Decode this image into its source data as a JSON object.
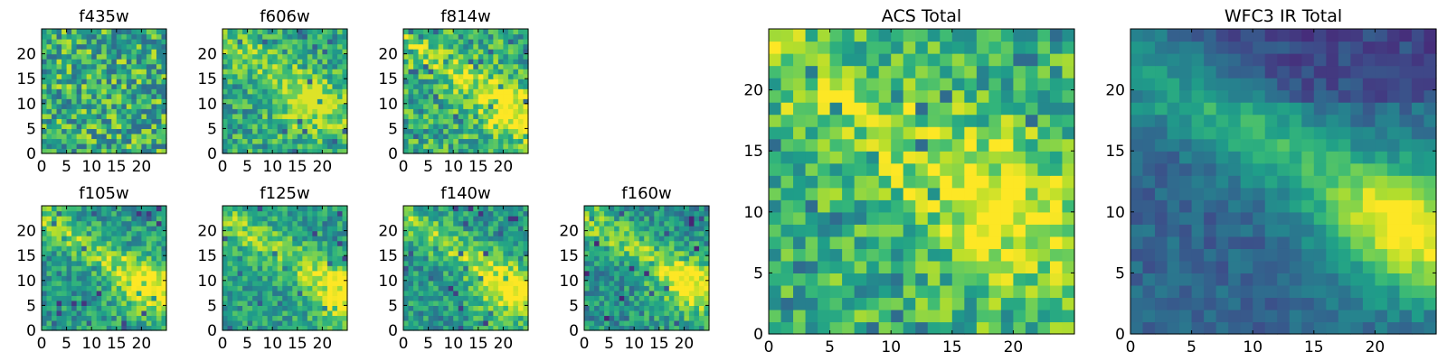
{
  "figure": {
    "colormap": "viridis",
    "background": "#ffffff"
  },
  "chart_data": [
    {
      "type": "heatmap",
      "title": "f435w",
      "grid": false,
      "shape": [
        25,
        25
      ],
      "xlim": [
        0,
        24
      ],
      "ylim": [
        0,
        24
      ],
      "xticks": [
        0,
        5,
        10,
        15,
        20
      ],
      "yticks": [
        0,
        5,
        10,
        15,
        20
      ],
      "colormap": "viridis",
      "pattern": "uniform noise, no visible structure",
      "value_range": [
        0.35,
        0.95
      ],
      "bright_region": null
    },
    {
      "type": "heatmap",
      "title": "f606w",
      "grid": false,
      "shape": [
        25,
        25
      ],
      "xlim": [
        0,
        24
      ],
      "ylim": [
        0,
        24
      ],
      "xticks": [
        0,
        5,
        10,
        15,
        20
      ],
      "yticks": [
        0,
        5,
        10,
        15,
        20
      ],
      "colormap": "viridis",
      "pattern": "noisy with faint bright patch lower-right",
      "value_range": [
        0.3,
        0.95
      ],
      "bright_region": {
        "x": 16,
        "y": 9
      }
    },
    {
      "type": "heatmap",
      "title": "f814w",
      "grid": false,
      "shape": [
        25,
        25
      ],
      "xlim": [
        0,
        24
      ],
      "ylim": [
        0,
        24
      ],
      "xticks": [
        0,
        5,
        10,
        15,
        20
      ],
      "yticks": [
        0,
        5,
        10,
        15,
        20
      ],
      "colormap": "viridis",
      "pattern": "noisy with bright diagonal band to lower-right",
      "value_range": [
        0.3,
        1.0
      ],
      "bright_region": {
        "x": 20,
        "y": 8
      }
    },
    {
      "type": "heatmap",
      "title": "f105w",
      "grid": false,
      "shape": [
        25,
        25
      ],
      "xlim": [
        0,
        24
      ],
      "ylim": [
        0,
        24
      ],
      "xticks": [
        0,
        5,
        10,
        15,
        20
      ],
      "yticks": [
        0,
        5,
        10,
        15,
        20
      ],
      "colormap": "viridis",
      "pattern": "diagonal bright band from upper-left to lower-right",
      "value_range": [
        0.15,
        1.0
      ],
      "bright_region": {
        "x": 21,
        "y": 8
      }
    },
    {
      "type": "heatmap",
      "title": "f125w",
      "grid": false,
      "shape": [
        25,
        25
      ],
      "xlim": [
        0,
        24
      ],
      "ylim": [
        0,
        24
      ],
      "xticks": [
        0,
        5,
        10,
        15,
        20
      ],
      "yticks": [
        0,
        5,
        10,
        15,
        20
      ],
      "colormap": "viridis",
      "pattern": "diagonal bright band, noisier",
      "value_range": [
        0.2,
        1.0
      ],
      "bright_region": {
        "x": 23,
        "y": 7
      }
    },
    {
      "type": "heatmap",
      "title": "f140w",
      "grid": false,
      "shape": [
        25,
        25
      ],
      "xlim": [
        0,
        24
      ],
      "ylim": [
        0,
        24
      ],
      "xticks": [
        0,
        5,
        10,
        15,
        20
      ],
      "yticks": [
        0,
        5,
        10,
        15,
        20
      ],
      "colormap": "viridis",
      "pattern": "diagonal bright band",
      "value_range": [
        0.15,
        1.0
      ],
      "bright_region": {
        "x": 20,
        "y": 7
      }
    },
    {
      "type": "heatmap",
      "title": "f160w",
      "grid": false,
      "shape": [
        25,
        25
      ],
      "xlim": [
        0,
        24
      ],
      "ylim": [
        0,
        24
      ],
      "xticks": [
        0,
        5,
        10,
        15,
        20
      ],
      "yticks": [
        0,
        5,
        10,
        15,
        20
      ],
      "colormap": "viridis",
      "pattern": "diagonal bright band",
      "value_range": [
        0.1,
        1.0
      ],
      "bright_region": {
        "x": 20,
        "y": 8
      }
    },
    {
      "type": "heatmap",
      "title": "ACS Total",
      "grid": false,
      "shape": [
        25,
        25
      ],
      "xlim": [
        0,
        24
      ],
      "ylim": [
        0,
        24
      ],
      "xticks": [
        0,
        5,
        10,
        15,
        20
      ],
      "yticks": [
        0,
        5,
        10,
        15,
        20
      ],
      "colormap": "viridis",
      "pattern": "blocky noise with brighter region center-right",
      "value_range": [
        0.35,
        1.0
      ],
      "bright_region": {
        "x": 18,
        "y": 10
      }
    },
    {
      "type": "heatmap",
      "title": "WFC3 IR Total",
      "grid": false,
      "shape": [
        25,
        25
      ],
      "xlim": [
        0,
        24
      ],
      "ylim": [
        0,
        24
      ],
      "xticks": [
        0,
        5,
        10,
        15,
        20
      ],
      "yticks": [
        0,
        5,
        10,
        15,
        20
      ],
      "colormap": "viridis",
      "pattern": "smooth diagonal band peaking lower-right",
      "value_range": [
        0.1,
        1.0
      ],
      "bright_region": {
        "x": 22,
        "y": 8
      }
    }
  ]
}
